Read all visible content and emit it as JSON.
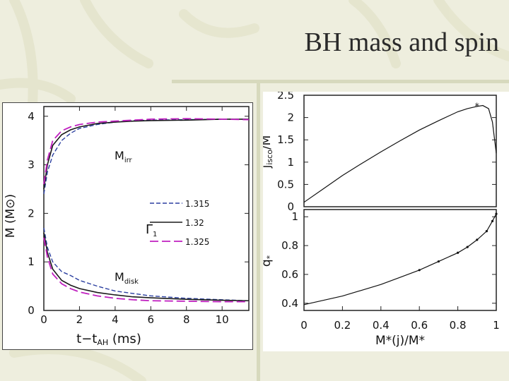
{
  "slide": {
    "title": "BH mass and spin"
  },
  "colors": {
    "background": "#eeeede",
    "accent": "#d7d9bd",
    "series_dark": "#1a1a1a",
    "series_blue": "#2b3fa0",
    "series_magenta": "#c020c0"
  },
  "left_chart": {
    "ylabel": "M (M⊙)",
    "xlabel_main": "t−t",
    "xlabel_sub": "AH",
    "xlabel_unit": " (ms)",
    "label_irr_main": "M",
    "label_irr_sub": "irr",
    "label_disk_main": "M",
    "label_disk_sub": "disk",
    "legend_gamma": "Γ",
    "legend_gamma_sub": "1",
    "x_ticks": [
      "0",
      "2",
      "4",
      "6",
      "8",
      "10"
    ],
    "y_ticks": [
      "0",
      "1",
      "2",
      "3",
      "4"
    ]
  },
  "right_top": {
    "ylabel_main": "j",
    "ylabel_sub": "isco",
    "ylabel_rest": "/M",
    "y_ticks": [
      "0",
      "0.5",
      "1",
      "1.5",
      "2",
      "2.5"
    ]
  },
  "right_bottom": {
    "ylabel_main": "q",
    "ylabel_sub": "*",
    "xlabel": "M*(j)/M*",
    "y_ticks": [
      "0.4",
      "0.6",
      "0.8",
      "1"
    ],
    "x_ticks": [
      "0",
      "0.2",
      "0.4",
      "0.6",
      "0.8",
      "1"
    ]
  },
  "chart_data": [
    {
      "type": "line",
      "xlabel": "t−tAH (ms)",
      "ylabel": "M (M⊙)",
      "xlim": [
        0,
        11.5
      ],
      "ylim": [
        0,
        4.2
      ],
      "legend_title": "Γ1",
      "series": [
        {
          "name": "1.315",
          "group": "Mirr",
          "x": [
            0,
            0.2,
            0.5,
            1,
            1.5,
            2,
            3,
            4,
            5,
            6,
            8,
            10,
            11.5
          ],
          "y": [
            2.4,
            2.85,
            3.2,
            3.5,
            3.65,
            3.75,
            3.83,
            3.88,
            3.91,
            3.92,
            3.93,
            3.94,
            3.94
          ]
        },
        {
          "name": "1.32",
          "group": "Mirr",
          "x": [
            0,
            0.2,
            0.5,
            1,
            1.5,
            2,
            3,
            4,
            5,
            6,
            8,
            10,
            11.5
          ],
          "y": [
            2.5,
            3.0,
            3.4,
            3.62,
            3.72,
            3.78,
            3.85,
            3.88,
            3.9,
            3.91,
            3.92,
            3.94,
            3.94
          ]
        },
        {
          "name": "1.325",
          "group": "Mirr",
          "x": [
            0,
            0.2,
            0.5,
            1,
            1.5,
            2,
            3,
            4,
            5,
            6,
            8,
            10,
            11.5
          ],
          "y": [
            2.6,
            3.1,
            3.5,
            3.7,
            3.78,
            3.83,
            3.88,
            3.9,
            3.92,
            3.94,
            3.95,
            3.94,
            3.93
          ]
        },
        {
          "name": "1.315",
          "group": "Mdisk",
          "x": [
            0,
            0.2,
            0.5,
            1,
            1.5,
            2,
            3,
            4,
            5,
            6,
            8,
            10,
            11.5
          ],
          "y": [
            1.7,
            1.3,
            1.0,
            0.8,
            0.72,
            0.62,
            0.5,
            0.4,
            0.35,
            0.3,
            0.25,
            0.22,
            0.2
          ]
        },
        {
          "name": "1.32",
          "group": "Mdisk",
          "x": [
            0,
            0.2,
            0.5,
            1,
            1.5,
            2,
            3,
            4,
            5,
            6,
            8,
            10,
            11.5
          ],
          "y": [
            1.6,
            1.2,
            0.85,
            0.62,
            0.52,
            0.45,
            0.37,
            0.32,
            0.28,
            0.26,
            0.23,
            0.21,
            0.2
          ]
        },
        {
          "name": "1.325",
          "group": "Mdisk",
          "x": [
            0,
            0.2,
            0.5,
            1,
            1.5,
            2,
            3,
            4,
            5,
            6,
            8,
            10,
            11.5
          ],
          "y": [
            1.5,
            1.1,
            0.75,
            0.55,
            0.45,
            0.38,
            0.3,
            0.25,
            0.22,
            0.2,
            0.19,
            0.18,
            0.18
          ]
        }
      ]
    },
    {
      "type": "line",
      "ylabel": "jisco/M",
      "xlim": [
        0,
        1
      ],
      "ylim": [
        0,
        2.5
      ],
      "series": [
        {
          "name": "",
          "x": [
            0,
            0.1,
            0.2,
            0.3,
            0.4,
            0.5,
            0.6,
            0.7,
            0.8,
            0.85,
            0.9,
            0.93,
            0.96,
            0.98,
            1.0
          ],
          "y": [
            0.1,
            0.4,
            0.7,
            0.97,
            1.23,
            1.48,
            1.72,
            1.93,
            2.13,
            2.2,
            2.25,
            2.27,
            2.2,
            1.9,
            1.2
          ]
        }
      ],
      "markers": [
        {
          "x": 0.9,
          "y": 2.27,
          "symbol": "*"
        }
      ]
    },
    {
      "type": "scatter",
      "ylabel": "q*",
      "xlabel": "M*(j)/M*",
      "xlim": [
        0,
        1
      ],
      "ylim": [
        0.35,
        1.05
      ],
      "series": [
        {
          "name": "",
          "x": [
            0,
            0.1,
            0.2,
            0.3,
            0.4,
            0.5,
            0.6,
            0.7,
            0.8,
            0.85,
            0.9,
            0.95,
            0.98,
            1.0
          ],
          "y": [
            0.39,
            0.42,
            0.45,
            0.49,
            0.53,
            0.58,
            0.63,
            0.69,
            0.75,
            0.79,
            0.84,
            0.9,
            0.97,
            1.02
          ]
        }
      ]
    }
  ]
}
